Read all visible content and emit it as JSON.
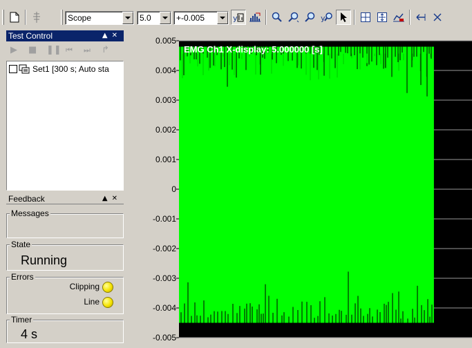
{
  "toolbar": {
    "scope_select": "Scope",
    "x_scale_select": "5.0",
    "y_scale_select": "+-0.005",
    "icons": [
      "new-file-icon",
      "settings-icon",
      "autoscale-y-icon",
      "histogram-icon",
      "zoom-icon",
      "zoom-in-icon",
      "zoom-out-icon",
      "zoom-y-icon",
      "pointer-icon",
      "grid-icon",
      "fit-icon",
      "chart-settings-icon",
      "scroll-left-icon",
      "close-icon"
    ]
  },
  "test_control": {
    "title": "Test Control",
    "tree_item": "Set1 [300 s; Auto sta"
  },
  "feedback": {
    "title": "Feedback",
    "messages_label": "Messages",
    "state_label": "State",
    "state_value": "Running",
    "errors_label": "Errors",
    "clipping_label": "Clipping",
    "line_label": "Line",
    "timer_label": "Timer",
    "timer_value": "4 s"
  },
  "chart_data": {
    "type": "line",
    "title": "EMG Ch1 X-display: 5.000000 [s]",
    "y_tick_labels": [
      "0.005",
      "0.004",
      "0.003",
      "0.002",
      "0.001",
      "0",
      "-0.001",
      "-0.002",
      "-0.003",
      "-0.004",
      "-0.005"
    ],
    "ylim": [
      -0.005,
      0.005
    ],
    "xlim": [
      0,
      5
    ],
    "data_extent_x": 4.35,
    "series": [
      {
        "color": "#00ff00",
        "fill_range": [
          -0.0045,
          0.0048
        ]
      }
    ],
    "grid": true,
    "background": "#000000"
  }
}
